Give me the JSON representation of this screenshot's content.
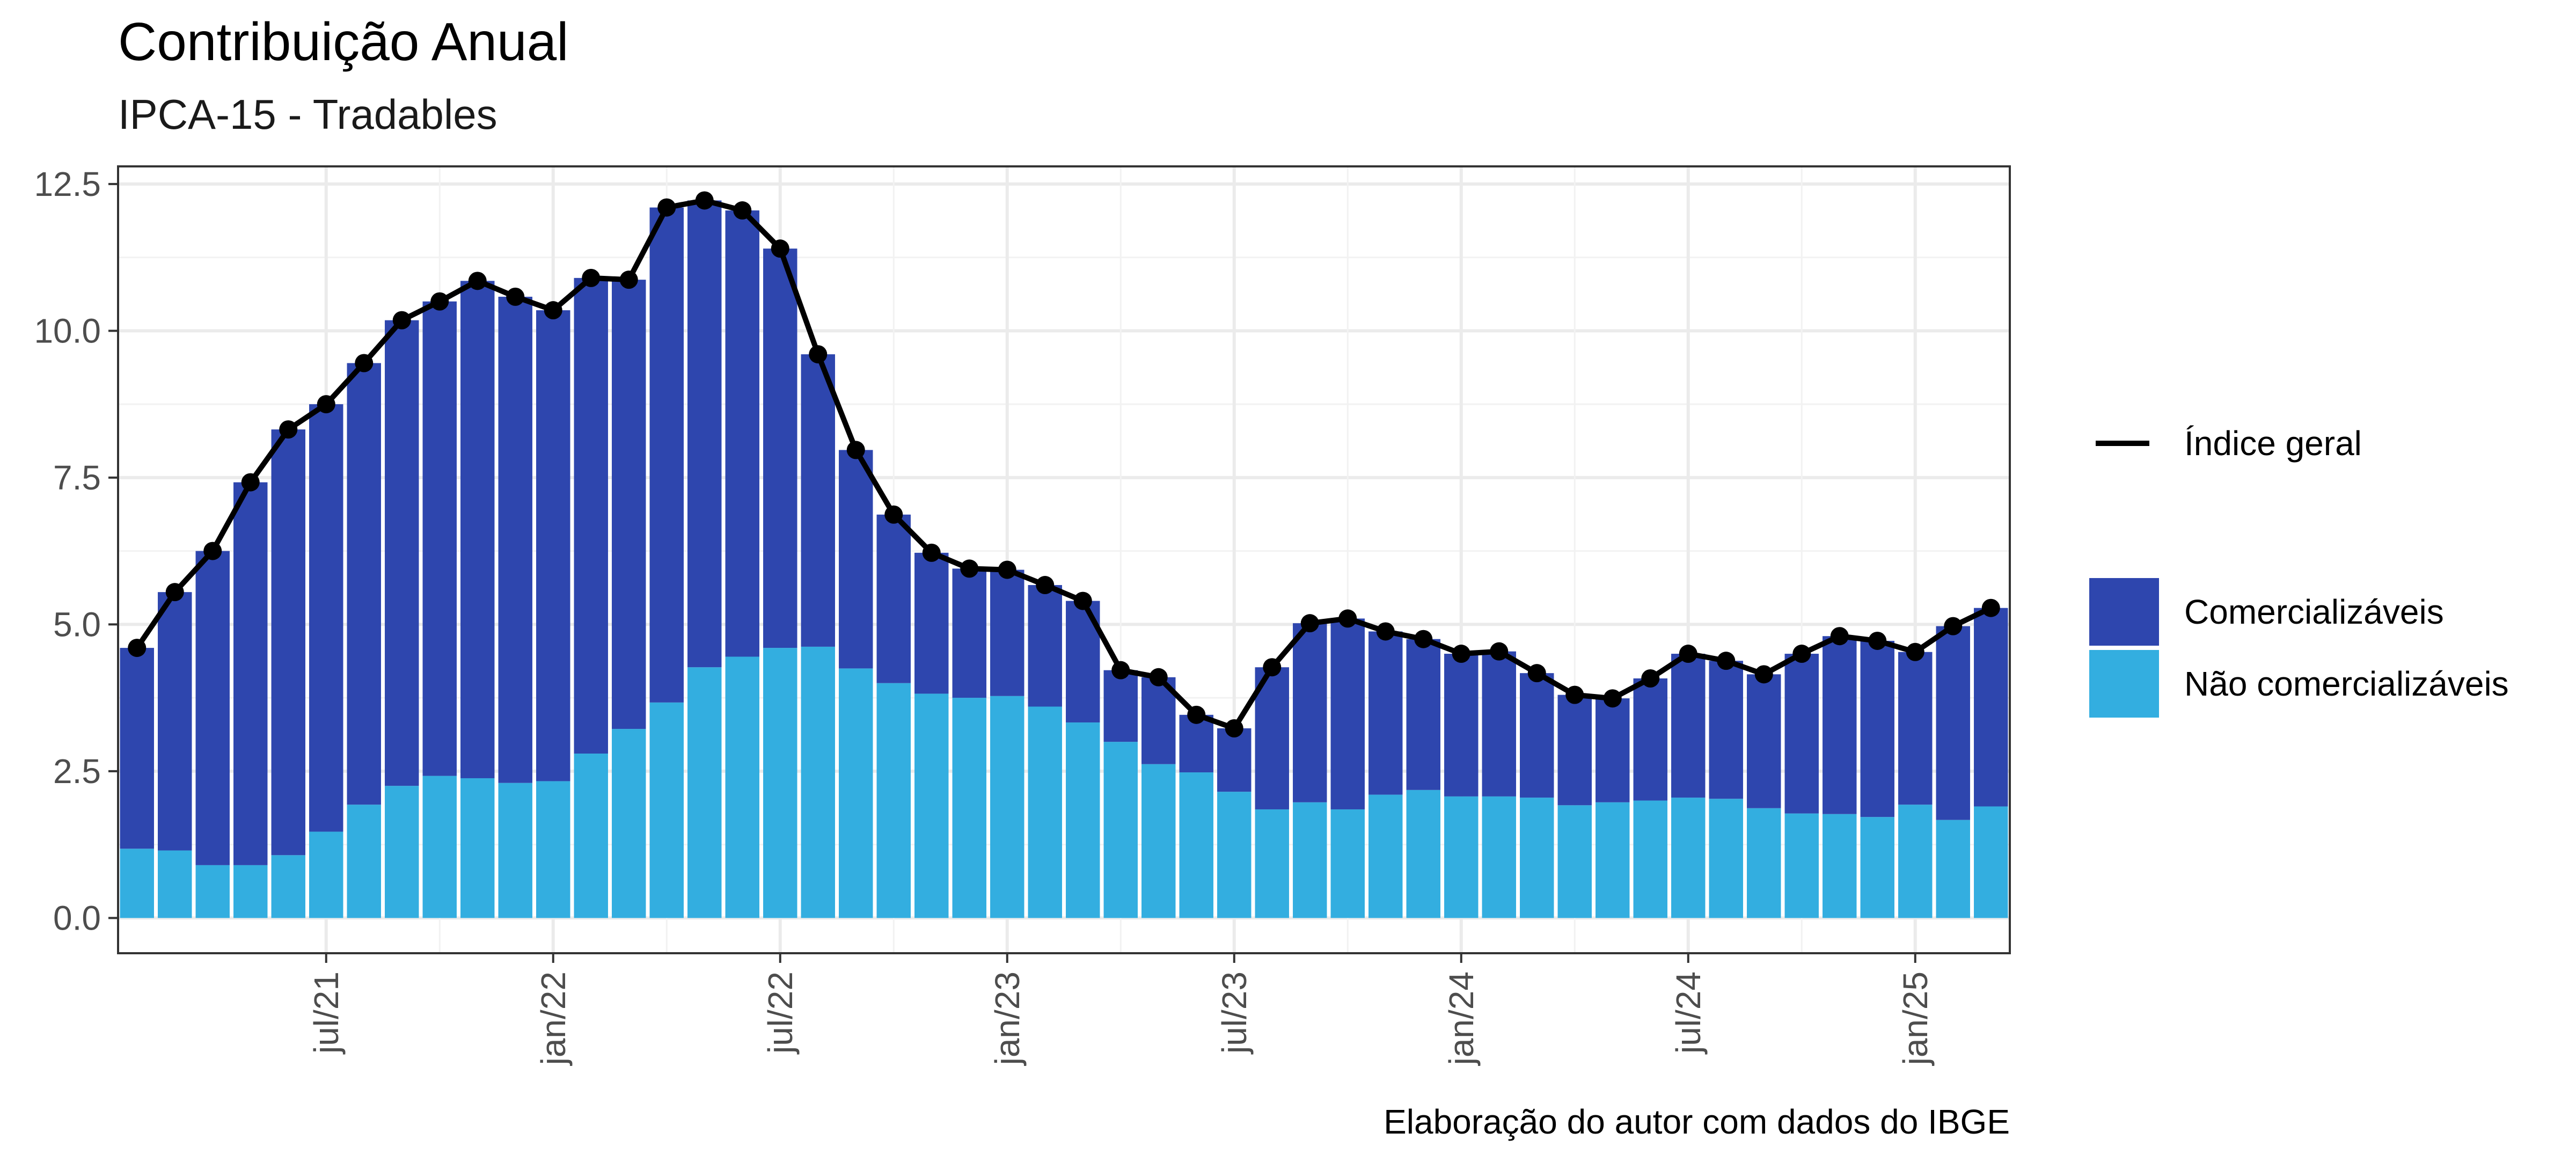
{
  "chart_data": {
    "type": "bar",
    "title": "Contribuição Anual",
    "subtitle": "IPCA-15 - Tradables",
    "caption": "Elaboração do autor com dados do IBGE",
    "xlabel": "",
    "ylabel": "",
    "ylim": [
      -0.6,
      12.8
    ],
    "yticks": [
      "0.0",
      "2.5",
      "5.0",
      "7.5",
      "10.0",
      "12.5"
    ],
    "x_tick_labels": [
      "jul/21",
      "jan/22",
      "jul/22",
      "jan/23",
      "jul/23",
      "jan/24",
      "jul/24",
      "jan/25"
    ],
    "x_tick_dates": [
      "2021-07",
      "2022-01",
      "2022-07",
      "2023-01",
      "2023-07",
      "2024-01",
      "2024-07",
      "2025-01"
    ],
    "categories": [
      "2021-02",
      "2021-03",
      "2021-04",
      "2021-05",
      "2021-06",
      "2021-07",
      "2021-08",
      "2021-09",
      "2021-10",
      "2021-11",
      "2021-12",
      "2022-01",
      "2022-02",
      "2022-03",
      "2022-04",
      "2022-05",
      "2022-06",
      "2022-07",
      "2022-08",
      "2022-09",
      "2022-10",
      "2022-11",
      "2022-12",
      "2023-01",
      "2023-02",
      "2023-03",
      "2023-04",
      "2023-05",
      "2023-06",
      "2023-07",
      "2023-08",
      "2023-09",
      "2023-10",
      "2023-11",
      "2023-12",
      "2024-01",
      "2024-02",
      "2024-03",
      "2024-04",
      "2024-05",
      "2024-06",
      "2024-07",
      "2024-08",
      "2024-09",
      "2024-10",
      "2024-11",
      "2024-12",
      "2025-01",
      "2025-02",
      "2025-03"
    ],
    "series": [
      {
        "name": "Não comercializáveis",
        "kind": "bar",
        "color": "#33AEE0",
        "values": [
          1.18,
          1.15,
          0.9,
          0.9,
          1.07,
          1.47,
          1.93,
          2.25,
          2.42,
          2.38,
          2.3,
          2.33,
          2.8,
          3.22,
          3.67,
          4.27,
          4.45,
          4.6,
          4.62,
          4.25,
          4.0,
          3.82,
          3.75,
          3.78,
          3.6,
          3.33,
          3.0,
          2.62,
          2.48,
          2.15,
          1.85,
          1.97,
          1.85,
          2.1,
          2.18,
          2.07,
          2.07,
          2.05,
          1.92,
          1.97,
          2.0,
          2.05,
          2.03,
          1.87,
          1.78,
          1.77,
          1.72,
          1.93,
          1.67,
          1.9
        ]
      },
      {
        "name": "Comercializáveis",
        "kind": "bar",
        "color": "#2E46AE",
        "values": [
          3.42,
          4.4,
          5.35,
          6.52,
          7.25,
          7.28,
          7.52,
          7.93,
          8.08,
          8.47,
          8.28,
          8.02,
          8.1,
          7.65,
          8.43,
          7.95,
          7.6,
          6.8,
          4.98,
          3.72,
          2.87,
          2.4,
          2.2,
          2.15,
          2.07,
          2.07,
          1.22,
          1.48,
          0.98,
          1.08,
          2.42,
          3.05,
          3.25,
          2.78,
          2.57,
          2.43,
          2.47,
          2.12,
          1.88,
          1.77,
          2.08,
          2.45,
          2.35,
          2.28,
          2.72,
          3.03,
          3.0,
          2.6,
          3.3,
          3.38
        ]
      },
      {
        "name": "Índice geral",
        "kind": "line",
        "color": "#000000",
        "values": [
          4.6,
          5.55,
          6.25,
          7.42,
          8.32,
          8.75,
          9.45,
          10.18,
          10.5,
          10.85,
          10.58,
          10.35,
          10.9,
          10.87,
          12.1,
          12.22,
          12.05,
          11.4,
          9.6,
          7.97,
          6.87,
          6.22,
          5.95,
          5.93,
          5.67,
          5.4,
          4.22,
          4.1,
          3.46,
          3.23,
          4.27,
          5.02,
          5.1,
          4.88,
          4.75,
          4.5,
          4.54,
          4.17,
          3.8,
          3.74,
          4.08,
          4.5,
          4.38,
          4.15,
          4.5,
          4.8,
          4.72,
          4.53,
          4.97,
          5.28
        ]
      }
    ],
    "legend": {
      "position": "right",
      "line_entry": "Índice geral",
      "bar_entries": [
        "Comercializáveis",
        "Não comercializáveis"
      ]
    },
    "grid": true,
    "colors": {
      "comercializaveis": "#2E46AE",
      "nao_comercializaveis": "#33AEE0",
      "line": "#000000",
      "grid": "#EBEBEB",
      "panel_border": "#333333"
    }
  }
}
